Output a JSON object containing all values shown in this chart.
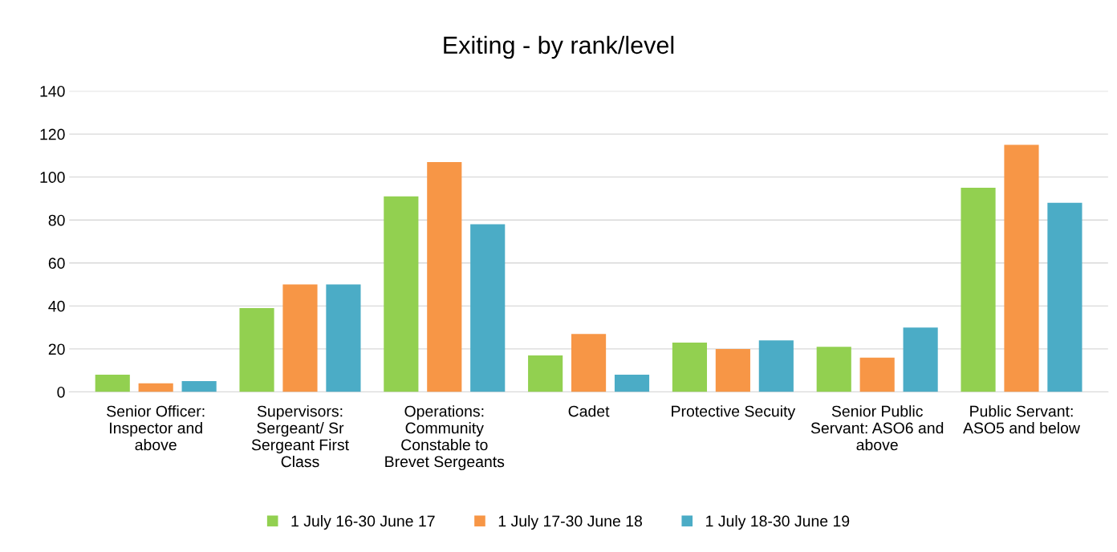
{
  "chart_data": {
    "type": "bar",
    "title": "Exiting - by rank/level",
    "categories": [
      "Senior Officer:\nInspector and\nabove",
      "Supervisors:\nSergeant/ Sr\nSergeant First\nClass",
      "Operations:\nCommunity\nConstable to\nBrevet Sergeants",
      "Cadet",
      "Protective Secuity",
      "Senior Public\nServant: ASO6 and\nabove",
      "Public Servant:\nASO5 and below"
    ],
    "series": [
      {
        "name": "1 July 16-30 June 17",
        "color": "#92d050",
        "values": [
          8,
          39,
          91,
          17,
          23,
          21,
          95
        ]
      },
      {
        "name": "1 July 17-30 June 18",
        "color": "#f79646",
        "values": [
          4,
          50,
          107,
          27,
          20,
          16,
          115
        ]
      },
      {
        "name": "1 July 18-30 June 19",
        "color": "#4bacc6",
        "values": [
          5,
          50,
          78,
          8,
          24,
          30,
          88
        ]
      }
    ],
    "ylim": [
      0,
      140
    ],
    "yticks": [
      0,
      20,
      40,
      60,
      80,
      100,
      120,
      140
    ],
    "grid": "y",
    "legend": "bottom"
  }
}
